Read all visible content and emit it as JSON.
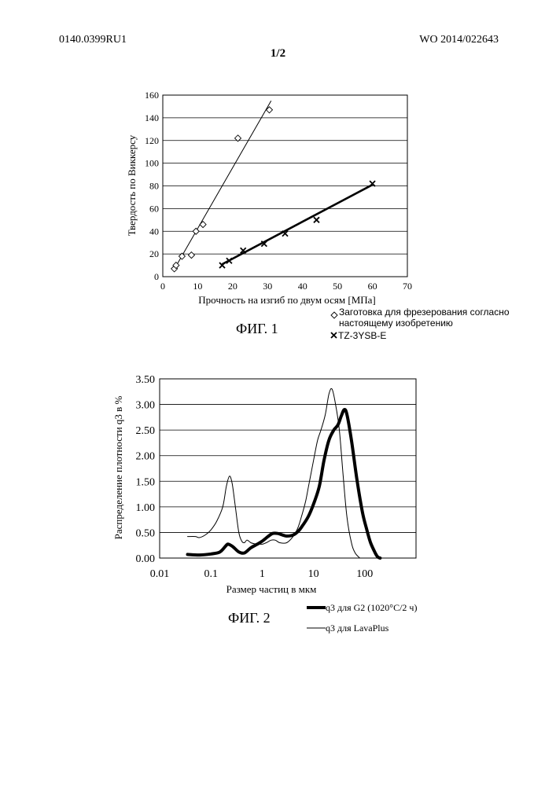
{
  "header": {
    "left": "0140.0399RU1",
    "right": "WO 2014/022643",
    "sheet": "1/2"
  },
  "figure1": {
    "caption": "ФИГ. 1",
    "chart_data": {
      "type": "scatter",
      "xlabel": "Прочность на изгиб по двум осям [МПа]",
      "ylabel": "Твердость по Виккерсу",
      "xlim": [
        0,
        70
      ],
      "ylim": [
        0,
        160
      ],
      "xticks": [
        "0",
        "10",
        "20",
        "30",
        "40",
        "50",
        "60",
        "70"
      ],
      "yticks": [
        "0",
        "20",
        "40",
        "60",
        "80",
        "100",
        "120",
        "140",
        "160"
      ],
      "grid": "horizontal",
      "series": [
        {
          "name": "Заготовка для фрезерования согласно настоящему изобретению",
          "legend_lines": [
            "Заготовка для фрезерования согласно",
            "настоящему изобретению"
          ],
          "marker": "diamond",
          "points": [
            [
              3.3,
              7
            ],
            [
              3.8,
              10
            ],
            [
              5.5,
              18
            ],
            [
              8.2,
              19
            ],
            [
              9.5,
              40
            ],
            [
              11.5,
              46
            ],
            [
              21.5,
              122
            ],
            [
              30.5,
              147
            ]
          ],
          "trendline": [
            [
              3,
              5
            ],
            [
              31,
              155
            ]
          ]
        },
        {
          "name": "TZ-3YSB-E",
          "legend_lines": [
            "TZ-3YSB-E"
          ],
          "marker": "x",
          "points": [
            [
              17,
              10
            ],
            [
              19,
              14
            ],
            [
              23,
              23
            ],
            [
              29,
              29
            ],
            [
              35,
              38
            ],
            [
              44,
              50
            ],
            [
              60,
              82
            ]
          ],
          "trendline": [
            [
              17,
              11
            ],
            [
              60,
              81
            ]
          ]
        }
      ]
    }
  },
  "figure2": {
    "caption": "ФИГ. 2",
    "chart_data": {
      "type": "line",
      "xscale": "log",
      "xlabel": "Размер частиц в мкм",
      "ylabel": "Распределение плотности q3 в %",
      "xlim": [
        0.01,
        1000
      ],
      "ylim": [
        0,
        3.5
      ],
      "xticks": [
        "0.01",
        "0.1",
        "1",
        "10",
        "100"
      ],
      "yticks": [
        "0.00",
        "0.50",
        "1.00",
        "1.50",
        "2.00",
        "2.50",
        "3.00",
        "3.50"
      ],
      "grid": "horizontal",
      "series": [
        {
          "name": "q3 для G2 (1020°C/2 ч)",
          "style": "thick",
          "points": [
            [
              0.035,
              0.07
            ],
            [
              0.06,
              0.06
            ],
            [
              0.1,
              0.08
            ],
            [
              0.15,
              0.12
            ],
            [
              0.2,
              0.25
            ],
            [
              0.22,
              0.27
            ],
            [
              0.27,
              0.22
            ],
            [
              0.35,
              0.12
            ],
            [
              0.45,
              0.1
            ],
            [
              0.6,
              0.2
            ],
            [
              0.8,
              0.27
            ],
            [
              1.0,
              0.33
            ],
            [
              1.3,
              0.42
            ],
            [
              1.6,
              0.48
            ],
            [
              2.0,
              0.48
            ],
            [
              2.5,
              0.45
            ],
            [
              3.0,
              0.43
            ],
            [
              4.0,
              0.45
            ],
            [
              5.0,
              0.52
            ],
            [
              6.0,
              0.62
            ],
            [
              8.0,
              0.82
            ],
            [
              10.0,
              1.05
            ],
            [
              13.0,
              1.4
            ],
            [
              16.0,
              1.9
            ],
            [
              20.0,
              2.3
            ],
            [
              25.0,
              2.5
            ],
            [
              30.0,
              2.6
            ],
            [
              35.0,
              2.78
            ],
            [
              40.0,
              2.9
            ],
            [
              45.0,
              2.8
            ],
            [
              55.0,
              2.3
            ],
            [
              70.0,
              1.55
            ],
            [
              90.0,
              0.9
            ],
            [
              110.0,
              0.55
            ],
            [
              130.0,
              0.3
            ],
            [
              160.0,
              0.1
            ],
            [
              180.0,
              0.02
            ],
            [
              200.0,
              0.0
            ]
          ]
        },
        {
          "name": "q3 для LavaPlus",
          "style": "thin",
          "points": [
            [
              0.035,
              0.42
            ],
            [
              0.05,
              0.42
            ],
            [
              0.06,
              0.4
            ],
            [
              0.08,
              0.46
            ],
            [
              0.1,
              0.55
            ],
            [
              0.13,
              0.72
            ],
            [
              0.17,
              1.0
            ],
            [
              0.2,
              1.4
            ],
            [
              0.23,
              1.6
            ],
            [
              0.26,
              1.45
            ],
            [
              0.3,
              1.0
            ],
            [
              0.35,
              0.5
            ],
            [
              0.4,
              0.33
            ],
            [
              0.45,
              0.3
            ],
            [
              0.5,
              0.35
            ],
            [
              0.55,
              0.33
            ],
            [
              0.6,
              0.3
            ],
            [
              0.7,
              0.28
            ],
            [
              0.8,
              0.28
            ],
            [
              1.0,
              0.27
            ],
            [
              1.2,
              0.3
            ],
            [
              1.5,
              0.35
            ],
            [
              1.8,
              0.35
            ],
            [
              2.2,
              0.3
            ],
            [
              3.0,
              0.3
            ],
            [
              4.0,
              0.42
            ],
            [
              5.0,
              0.6
            ],
            [
              6.0,
              0.85
            ],
            [
              7.0,
              1.1
            ],
            [
              8.0,
              1.4
            ],
            [
              10.0,
              1.9
            ],
            [
              12.0,
              2.3
            ],
            [
              14.0,
              2.5
            ],
            [
              17.0,
              2.8
            ],
            [
              20.0,
              3.2
            ],
            [
              23.0,
              3.3
            ],
            [
              27.0,
              3.0
            ],
            [
              32.0,
              2.5
            ],
            [
              38.0,
              1.6
            ],
            [
              45.0,
              0.8
            ],
            [
              55.0,
              0.3
            ],
            [
              65.0,
              0.1
            ],
            [
              80.0,
              0.0
            ]
          ]
        }
      ]
    }
  }
}
